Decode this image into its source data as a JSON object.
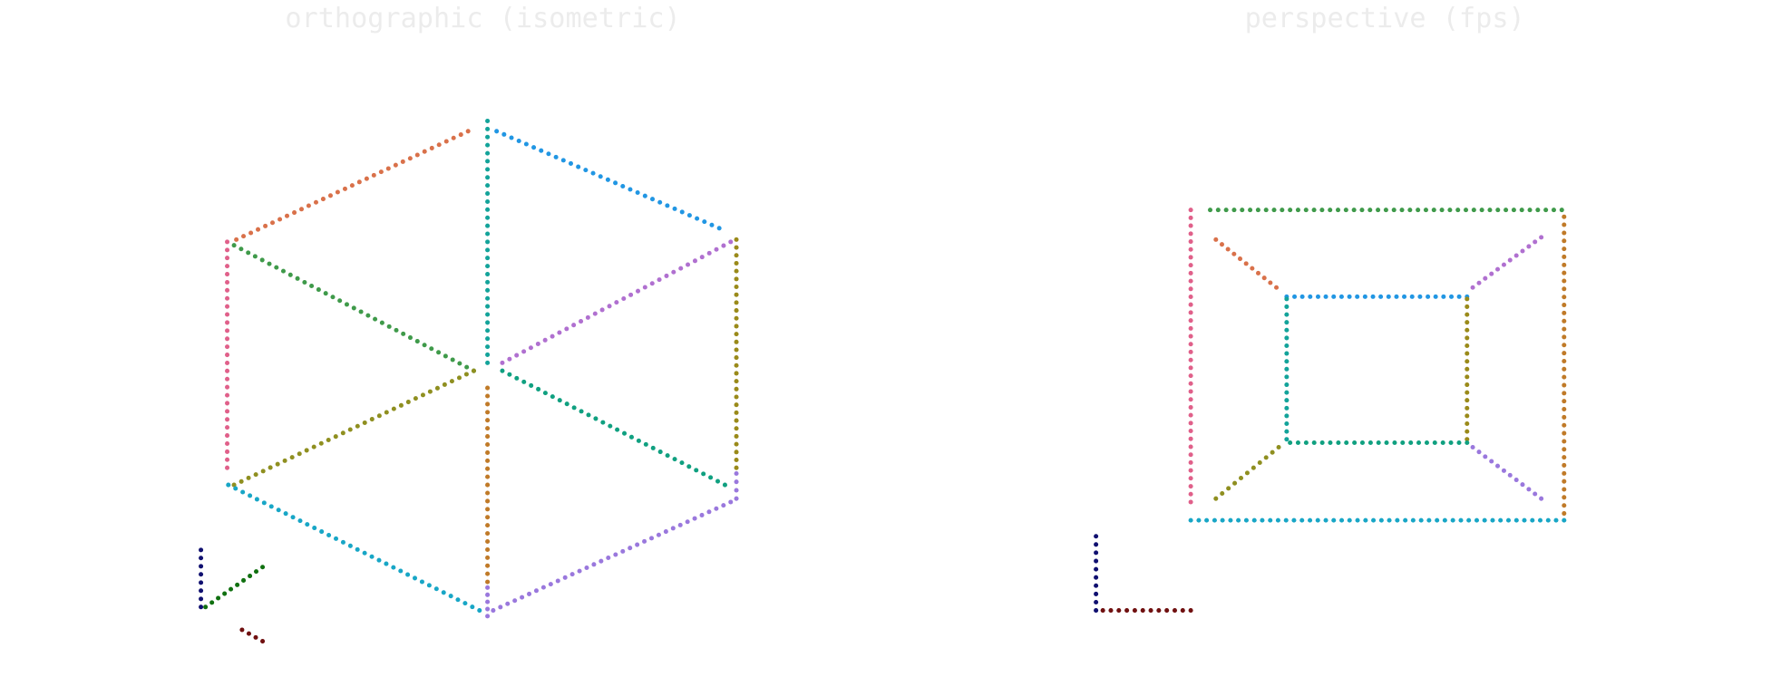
{
  "panels": [
    {
      "title": "orthographic (isometric)"
    },
    {
      "title": "perspective (fps)"
    }
  ]
}
